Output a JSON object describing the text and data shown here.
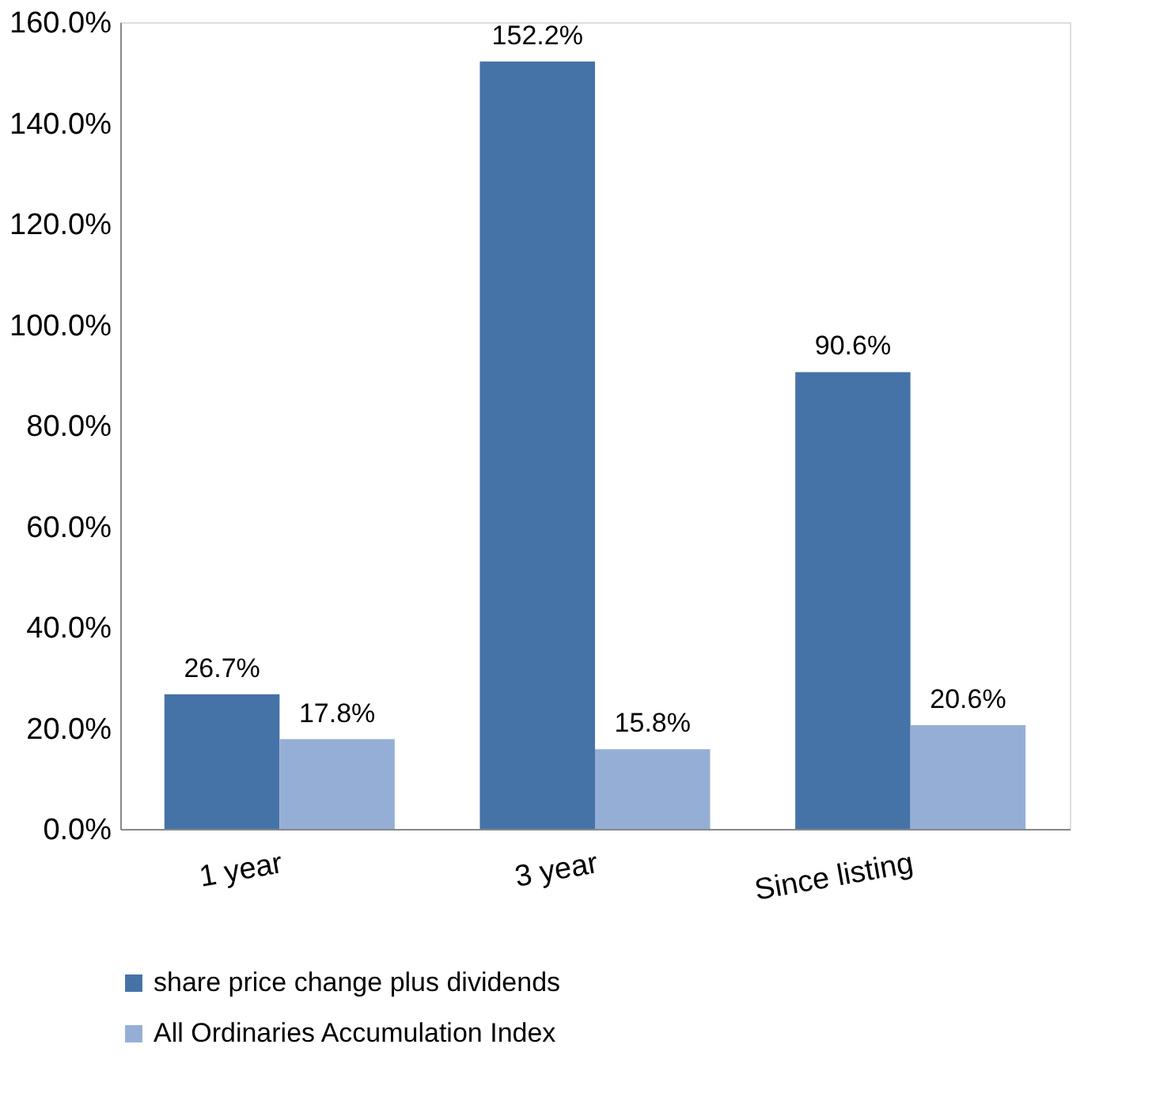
{
  "chart_data": {
    "type": "bar",
    "categories": [
      "1 year",
      "3 year",
      "Since listing"
    ],
    "series": [
      {
        "name": "share price change plus dividends",
        "color": "#4572a7",
        "values": [
          26.7,
          152.2,
          90.6
        ],
        "value_labels": [
          "26.7%",
          "152.2%",
          "90.6%"
        ]
      },
      {
        "name": "All Ordinaries Accumulation Index",
        "color": "#95aed5",
        "values": [
          17.8,
          15.8,
          20.6
        ],
        "value_labels": [
          "17.8%",
          "15.8%",
          "20.6%"
        ]
      }
    ],
    "ylim": [
      0,
      160
    ],
    "yticks": [
      {
        "value": 0,
        "label": "0.0%"
      },
      {
        "value": 20,
        "label": "20.0%"
      },
      {
        "value": 40,
        "label": "40.0%"
      },
      {
        "value": 60,
        "label": "60.0%"
      },
      {
        "value": 80,
        "label": "80.0%"
      },
      {
        "value": 100,
        "label": "100.0%"
      },
      {
        "value": 120,
        "label": "120.0%"
      },
      {
        "value": 140,
        "label": "140.0%"
      },
      {
        "value": 160,
        "label": "160.0%"
      }
    ],
    "grid": false,
    "legend": "bottom"
  }
}
